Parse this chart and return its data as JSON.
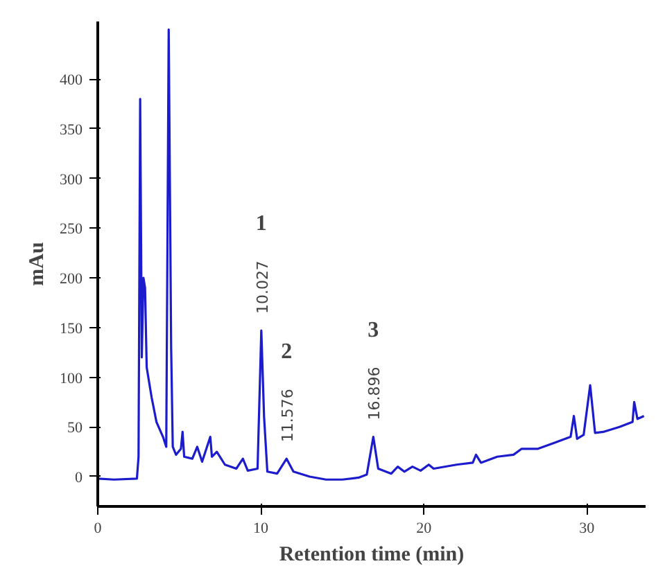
{
  "chart_data": {
    "type": "line",
    "xlabel": "Retention time (min)",
    "ylabel": "mAu",
    "xlim": [
      0,
      33.6
    ],
    "ylim": [
      -30,
      458
    ],
    "xticks": [
      0,
      10,
      20,
      30
    ],
    "yticks": [
      0,
      50,
      100,
      150,
      200,
      250,
      300,
      350,
      400
    ],
    "grid": false,
    "marker": "none",
    "line_style": "solid",
    "series": [
      {
        "color": "#1c1ccc",
        "x": [
          0,
          1,
          2.4,
          2.5,
          2.6,
          2.7,
          2.8,
          2.9,
          3.0,
          3.3,
          3.6,
          4.0,
          4.2,
          4.35,
          4.5,
          4.6,
          4.8,
          5.1,
          5.2,
          5.3,
          5.8,
          6.1,
          6.4,
          6.9,
          7.0,
          7.3,
          7.8,
          8.5,
          8.9,
          9.2,
          9.8,
          10.03,
          10.2,
          10.4,
          11.0,
          11.58,
          12.0,
          13,
          14,
          15,
          16,
          16.5,
          16.9,
          17.2,
          18,
          18.4,
          18.8,
          19.3,
          19.8,
          20.3,
          20.6,
          22,
          23,
          23.2,
          23.5,
          24.5,
          25.5,
          26,
          27,
          28,
          29,
          29.2,
          29.4,
          29.8,
          30.2,
          30.5,
          31,
          32,
          32.8,
          32.9,
          33.1,
          33.5
        ],
        "values": [
          -2,
          -3,
          -2,
          20,
          380,
          120,
          200,
          190,
          110,
          80,
          55,
          40,
          30,
          450,
          130,
          30,
          22,
          28,
          45,
          20,
          18,
          30,
          15,
          40,
          20,
          25,
          12,
          8,
          18,
          6,
          8,
          147,
          60,
          5,
          3,
          18,
          5,
          0,
          -3,
          -3,
          -1,
          2,
          40,
          8,
          3,
          10,
          5,
          10,
          6,
          12,
          8,
          12,
          14,
          22,
          14,
          20,
          22,
          28,
          28,
          34,
          40,
          61,
          38,
          42,
          92,
          44,
          45,
          50,
          55,
          75,
          58,
          61
        ]
      }
    ],
    "annotations": [
      "1",
      {
        "text": "10.027",
        "x": 10.03,
        "y": 147
      },
      "2",
      {
        "text": "11.576",
        "x": 11.58,
        "y": 18
      },
      "3",
      {
        "text": "16.896",
        "x": 16.9,
        "y": 40
      }
    ]
  }
}
